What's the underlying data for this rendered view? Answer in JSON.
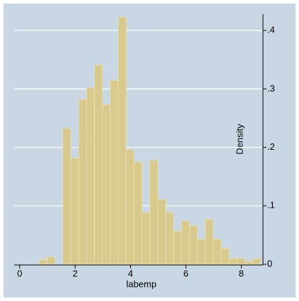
{
  "chart_data": {
    "type": "histogram",
    "x_label": "labemp",
    "y_label": "Density",
    "bins": [
      0.7,
      0.986,
      1.271,
      1.557,
      1.843,
      2.129,
      2.414,
      2.7,
      2.986,
      3.271,
      3.557,
      3.843,
      4.129,
      4.414,
      4.7,
      4.986,
      5.271,
      5.557,
      5.843,
      6.129,
      6.414,
      6.7,
      6.986,
      7.271,
      7.557,
      7.843,
      8.129,
      8.414,
      8.7
    ],
    "values": [
      0.008,
      0.013,
      0,
      0.233,
      0.182,
      0.282,
      0.302,
      0.341,
      0.273,
      0.315,
      0.423,
      0.196,
      0.175,
      0.089,
      0.178,
      0.111,
      0.089,
      0.057,
      0.074,
      0.066,
      0.043,
      0.077,
      0.043,
      0.027,
      0.01,
      0.01,
      0.005,
      0.01
    ],
    "color": "#d8ca8c",
    "xlim": [
      -0.2,
      8.78
    ],
    "xticks": [
      0,
      2,
      4,
      6,
      8
    ],
    "ylim": [
      0,
      0.428
    ],
    "yticks": [
      0,
      {
        "value": 0.1,
        "label": ".1"
      },
      {
        "value": 0.2,
        "label": ".2"
      },
      {
        "value": 0.3,
        "label": ".3"
      },
      {
        "value": 0.4,
        "label": ".4"
      }
    ],
    "grid": true
  }
}
